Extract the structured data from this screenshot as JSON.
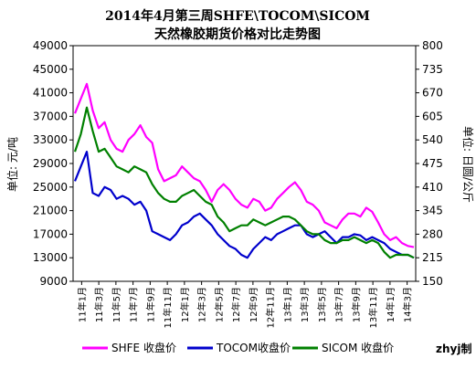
{
  "chart_data": {
    "type": "line",
    "title": "2014年4月第三周SHFE\\TOCOM\\SICOM",
    "subtitle": "天然橡胶期货价格对比走势图",
    "ylabel_left": "单位: 元/吨",
    "ylabel_right": "单位: 日圆/公斤",
    "left_axis": {
      "min": 9000,
      "max": 49000,
      "ticks": [
        "49000",
        "45000",
        "41000",
        "37000",
        "33000",
        "29000",
        "25000",
        "21000",
        "17000",
        "13000",
        "9000"
      ]
    },
    "right_axis": {
      "min": 150,
      "max": 800,
      "ticks": [
        "800",
        "735",
        "670",
        "605",
        "540",
        "475",
        "410",
        "345",
        "280",
        "215",
        "150"
      ]
    },
    "x_ticks": [
      "11年1月",
      "11年3月",
      "11年5月",
      "11年7月",
      "11年9月",
      "11年11月",
      "12年1月",
      "12年3月",
      "12年5月",
      "12年7月",
      "12年9月",
      "12年11月",
      "13年1月",
      "13年3月",
      "13年5月",
      "13年7月",
      "13年9月",
      "13年11月",
      "14年1月",
      "14年3月"
    ],
    "series": [
      {
        "name": "SHFE 收盘价",
        "axis": "left",
        "color": "#ff00ff",
        "values": [
          37500,
          40000,
          42500,
          38000,
          35000,
          36000,
          33000,
          31500,
          31000,
          33000,
          34000,
          35500,
          33500,
          32500,
          28000,
          26000,
          26500,
          27000,
          28500,
          27500,
          26500,
          26000,
          24500,
          22500,
          24500,
          25500,
          24500,
          23000,
          22000,
          21500,
          23000,
          22500,
          21000,
          21500,
          23000,
          24000,
          25000,
          25800,
          24500,
          22500,
          22000,
          21000,
          19000,
          18500,
          18000,
          19500,
          20500,
          20500,
          20000,
          21500,
          20800,
          19000,
          17000,
          16000,
          16500,
          15500,
          15000,
          14800
        ]
      },
      {
        "name": "TOCOM收盘价",
        "axis": "left",
        "color": "#0000cc",
        "values": [
          26000,
          28500,
          31000,
          24000,
          23500,
          25000,
          24500,
          23000,
          23500,
          23000,
          22000,
          22500,
          21000,
          17500,
          17000,
          16500,
          16000,
          17000,
          18500,
          19000,
          20000,
          20500,
          19500,
          18500,
          17000,
          16000,
          15000,
          14500,
          13500,
          13000,
          14500,
          15500,
          16500,
          16000,
          17000,
          17500,
          18000,
          18500,
          18500,
          17000,
          16500,
          17000,
          17500,
          16500,
          15500,
          16500,
          16500,
          17000,
          16800,
          16000,
          16500,
          16000,
          15500,
          14500,
          14000,
          13500,
          13500,
          13000
        ]
      },
      {
        "name": "SICOM 收盘价",
        "axis": "left",
        "color": "#008000",
        "values": [
          31000,
          34000,
          38500,
          34500,
          31000,
          31500,
          30000,
          28500,
          28000,
          27500,
          28500,
          28000,
          27500,
          25500,
          24000,
          23000,
          22500,
          22500,
          23500,
          24000,
          24500,
          23500,
          22500,
          22000,
          20000,
          19000,
          17500,
          18000,
          18500,
          18500,
          19500,
          19000,
          18500,
          19000,
          19500,
          20000,
          20000,
          19500,
          18500,
          17500,
          17000,
          17000,
          16000,
          15500,
          15500,
          16000,
          16000,
          16500,
          16000,
          15500,
          16000,
          15500,
          14000,
          13000,
          13500,
          13500,
          13500,
          13000
        ]
      }
    ],
    "grid": false,
    "legend_position": "bottom"
  },
  "credit": "zhyj制"
}
